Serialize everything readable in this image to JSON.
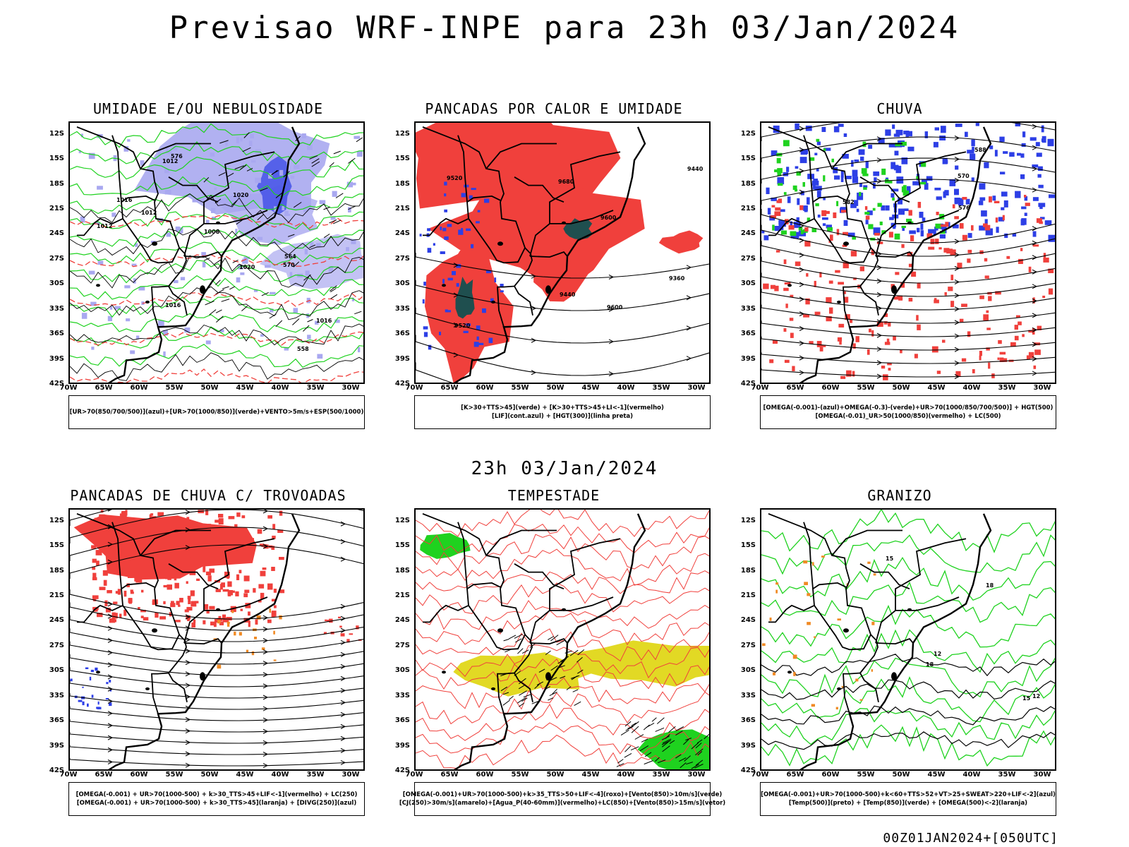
{
  "header": {
    "title": "Previsao WRF-INPE  para 23h 03/Jan/2024"
  },
  "mid_date": "23h 03/Jan/2024",
  "footer": {
    "run": "00Z01JAN2024+[050UTC]"
  },
  "axes": {
    "lat_labels": [
      "12S",
      "15S",
      "18S",
      "21S",
      "24S",
      "27S",
      "30S",
      "33S",
      "36S",
      "39S",
      "42S"
    ],
    "lon_labels": [
      "70W",
      "65W",
      "60W",
      "55W",
      "50W",
      "45W",
      "40W",
      "35W",
      "30W"
    ]
  },
  "colors": {
    "blue": "#2d3fe6",
    "lilac": "#a9a8f0",
    "green": "#1fd21f",
    "red": "#f0403c",
    "dark_teal": "#1f4f4f",
    "yellow": "#e2d924",
    "orange": "#f08a24",
    "black": "#000000"
  },
  "panels": [
    {
      "id": "umidade",
      "title": "UMIDADE E/OU NEBULOSIDADE",
      "legend": [
        "[UR>70(850/700/500)](azul)+[UR>70(1000/850)](verde)+VENTO>5m/s+ESP(500/1000)"
      ],
      "contour_labels": [
        "1012",
        "1016",
        "1008",
        "1012",
        "1016",
        "1020",
        "1012",
        "1020",
        "1016",
        "570",
        "576",
        "564",
        "558"
      ]
    },
    {
      "id": "pancadas-calor",
      "title": "PANCADAS POR CALOR E UMIDADE",
      "legend": [
        "[K>30+TTS>45](verde) + [K>30+TTS>45+LI<-1](vermelho)",
        "[LIF](cont.azul) + [HGT(300)](linha preta)"
      ],
      "contour_labels": [
        "9680",
        "9600",
        "9520",
        "9440",
        "9360",
        "9600",
        "9520",
        "9440"
      ]
    },
    {
      "id": "chuva",
      "title": "CHUVA",
      "legend": [
        "[OMEGA(-0.001)-(azul)+OMEGA(-0.3)-(verde)+UR>70(1000/850/700/500)] + HGT(500)",
        "[OMEGA(-0.01)_UR>50(1000/850)(vermelho) + LC(500)"
      ],
      "contour_labels": [
        "588",
        "582",
        "576",
        "570"
      ]
    },
    {
      "id": "pancadas-trovoadas",
      "title": "PANCADAS DE CHUVA C/ TROVOADAS",
      "legend": [
        "[OMEGA(-0.001) + UR>70(1000-500) + k>30_TTS>45+LIF<-1](vermelho) + LC(250)",
        "[OMEGA(-0.001) + UR>70(1000-500) + k>30_TTS>45](laranja) + [DIVG(250)](azul)"
      ],
      "contour_labels": []
    },
    {
      "id": "tempestade",
      "title": "TEMPESTADE",
      "legend": [
        "[OMEGA(-0.001)+UR>70(1000-500)+k>35_TTS>50+LIF<-4](roxo)+[Vento(850)>10m/s](verde)",
        "[CJ(250)>30m/s](amarelo)+[Agua_P(40-60mm)](vermelho)+LC(850)+[Vento(850)>15m/s](vetor)"
      ],
      "contour_labels": []
    },
    {
      "id": "granizo",
      "title": "GRANIZO",
      "legend": [
        "[OMEGA(-0.001)+UR>70(1000-500)+k<60+TTS>52+VT>25+SWEAT>220+LIF<-2](azul)",
        "[Temp(500)](preto) + [Temp(850)](verde) + [OMEGA(500)<-2](laranja)"
      ],
      "contour_labels": [
        "12",
        "15",
        "18",
        "18",
        "15",
        "12"
      ]
    }
  ]
}
